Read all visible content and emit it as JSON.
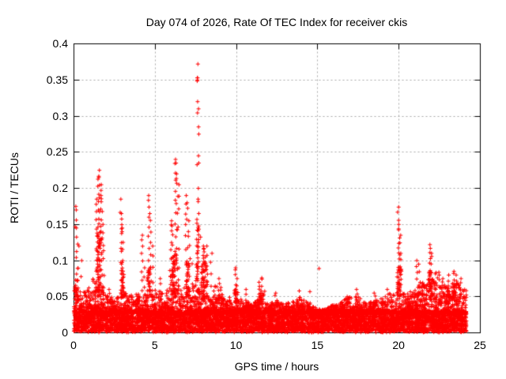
{
  "chart_data": {
    "type": "scatter",
    "title": "Day 074 of 2026, Rate Of TEC Index for receiver ckis",
    "xlabel": "GPS time / hours",
    "ylabel": "ROTI / TECUs",
    "xlim": [
      0,
      25
    ],
    "ylim": [
      0,
      0.4
    ],
    "xtick_values": [
      0,
      5,
      10,
      15,
      20,
      25
    ],
    "xtick_labels": [
      "0",
      "5",
      "10",
      "15",
      "20",
      "25"
    ],
    "ytick_values": [
      0,
      0.05,
      0.1,
      0.15,
      0.2,
      0.25,
      0.3,
      0.35,
      0.4
    ],
    "ytick_labels": [
      "0",
      "0.05",
      "0.1",
      "0.15",
      "0.2",
      "0.25",
      "0.3",
      "0.35",
      "0.4"
    ],
    "grid": true,
    "legend": "none",
    "marker": "plus",
    "marker_color": "#ff0000",
    "grid_color": "#a8a8a8",
    "axis_color": "#000000",
    "background_color": "#ffffff",
    "data_start_hour": 0,
    "data_end_hour": 24.15,
    "baseline_band": [
      0.002,
      0.032
    ],
    "max_point": {
      "hour": 7.6,
      "roti": 0.372
    },
    "bush_envelope": {
      "step_hours": 0.5,
      "values": [
        0.07,
        0.055,
        0.065,
        0.095,
        0.055,
        0.05,
        0.065,
        0.05,
        0.055,
        0.06,
        0.06,
        0.055,
        0.07,
        0.075,
        0.06,
        0.075,
        0.065,
        0.055,
        0.05,
        0.05,
        0.05,
        0.045,
        0.04,
        0.05,
        0.04,
        0.045,
        0.04,
        0.045,
        0.05,
        0.04,
        0.033,
        0.033,
        0.04,
        0.045,
        0.05,
        0.05,
        0.04,
        0.045,
        0.05,
        0.055,
        0.065,
        0.055,
        0.06,
        0.07,
        0.075,
        0.07,
        0.065,
        0.07,
        0.06
      ]
    },
    "spikes": [
      [
        0.1,
        0.175,
        4
      ],
      [
        0.15,
        0.17,
        6
      ],
      [
        0.2,
        0.145,
        4
      ],
      [
        0.3,
        0.12,
        3
      ],
      [
        0.45,
        0.1,
        3
      ],
      [
        1.4,
        0.185,
        10
      ],
      [
        1.5,
        0.225,
        14
      ],
      [
        1.55,
        0.215,
        8
      ],
      [
        1.65,
        0.205,
        10
      ],
      [
        1.7,
        0.19,
        8
      ],
      [
        1.8,
        0.15,
        6
      ],
      [
        2.2,
        0.06,
        3
      ],
      [
        2.9,
        0.185,
        6
      ],
      [
        2.95,
        0.165,
        10
      ],
      [
        3.0,
        0.145,
        8
      ],
      [
        3.55,
        0.052,
        3
      ],
      [
        4.2,
        0.135,
        9
      ],
      [
        4.35,
        0.09,
        4
      ],
      [
        4.6,
        0.19,
        11
      ],
      [
        4.7,
        0.165,
        8
      ],
      [
        4.85,
        0.12,
        5
      ],
      [
        5.35,
        0.075,
        4
      ],
      [
        6.0,
        0.155,
        9
      ],
      [
        6.05,
        0.148,
        6
      ],
      [
        6.25,
        0.24,
        13
      ],
      [
        6.3,
        0.235,
        6
      ],
      [
        6.35,
        0.22,
        8
      ],
      [
        6.45,
        0.205,
        7
      ],
      [
        6.9,
        0.19,
        9
      ],
      [
        7.0,
        0.18,
        8
      ],
      [
        7.1,
        0.155,
        6
      ],
      [
        7.6,
        0.372,
        1
      ],
      [
        7.6,
        0.35,
        5
      ],
      [
        7.62,
        0.32,
        2
      ],
      [
        7.63,
        0.31,
        2
      ],
      [
        7.65,
        0.285,
        2
      ],
      [
        7.66,
        0.275,
        2
      ],
      [
        7.68,
        0.245,
        2
      ],
      [
        7.7,
        0.235,
        2
      ],
      [
        7.62,
        0.2,
        6
      ],
      [
        7.65,
        0.185,
        5
      ],
      [
        7.95,
        0.12,
        8
      ],
      [
        8.0,
        0.117,
        8
      ],
      [
        8.1,
        0.105,
        6
      ],
      [
        8.2,
        0.12,
        5
      ],
      [
        8.45,
        0.11,
        5
      ],
      [
        8.95,
        0.075,
        5
      ],
      [
        9.95,
        0.09,
        7
      ],
      [
        10.05,
        0.075,
        4
      ],
      [
        10.6,
        0.06,
        3
      ],
      [
        11.4,
        0.07,
        5
      ],
      [
        11.55,
        0.076,
        6
      ],
      [
        12.4,
        0.055,
        3
      ],
      [
        13.9,
        0.058,
        3
      ],
      [
        14.5,
        0.057,
        2
      ],
      [
        15.1,
        0.089,
        1
      ],
      [
        16.8,
        0.05,
        2
      ],
      [
        17.4,
        0.06,
        3
      ],
      [
        18.5,
        0.055,
        3
      ],
      [
        19.3,
        0.06,
        3
      ],
      [
        19.95,
        0.174,
        9
      ],
      [
        20.0,
        0.15,
        8
      ],
      [
        20.05,
        0.135,
        6
      ],
      [
        20.1,
        0.11,
        5
      ],
      [
        21.1,
        0.1,
        6
      ],
      [
        21.2,
        0.095,
        4
      ],
      [
        21.9,
        0.122,
        9
      ],
      [
        22.0,
        0.11,
        6
      ],
      [
        22.5,
        0.08,
        4
      ],
      [
        22.7,
        0.075,
        4
      ],
      [
        23.0,
        0.08,
        4
      ],
      [
        23.35,
        0.085,
        5
      ],
      [
        23.5,
        0.08,
        4
      ],
      [
        23.8,
        0.075,
        4
      ]
    ],
    "dense_clusters": [
      [
        0.15,
        0.06,
        0.04,
        0.075,
        15
      ],
      [
        1.55,
        0.12,
        0.05,
        0.14,
        55
      ],
      [
        3.0,
        0.06,
        0.05,
        0.1,
        25
      ],
      [
        4.65,
        0.08,
        0.05,
        0.09,
        20
      ],
      [
        6.15,
        0.12,
        0.05,
        0.11,
        40
      ],
      [
        7.0,
        0.1,
        0.05,
        0.1,
        25
      ],
      [
        7.62,
        0.05,
        0.05,
        0.15,
        30
      ],
      [
        8.0,
        0.12,
        0.05,
        0.1,
        35
      ],
      [
        8.9,
        0.15,
        0.04,
        0.065,
        20
      ],
      [
        10.0,
        0.1,
        0.04,
        0.06,
        15
      ],
      [
        11.5,
        0.1,
        0.04,
        0.06,
        15
      ],
      [
        20.0,
        0.07,
        0.05,
        0.095,
        25
      ],
      [
        21.3,
        0.15,
        0.04,
        0.07,
        20
      ],
      [
        22.0,
        0.15,
        0.045,
        0.085,
        35
      ],
      [
        22.8,
        0.3,
        0.04,
        0.065,
        30
      ],
      [
        23.5,
        0.25,
        0.04,
        0.07,
        30
      ]
    ]
  }
}
